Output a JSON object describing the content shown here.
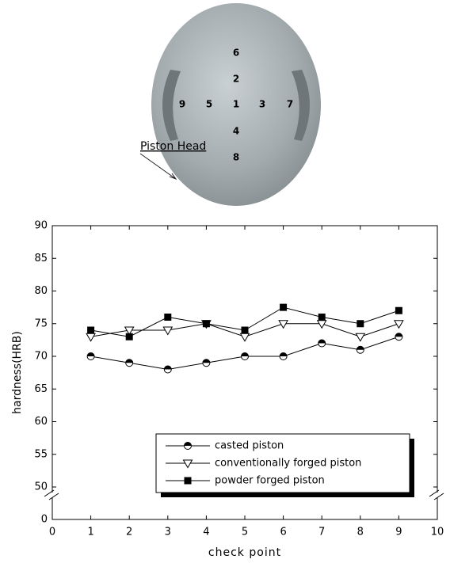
{
  "photo": {
    "label": "Piston Head",
    "points": [
      6,
      2,
      9,
      5,
      1,
      3,
      7,
      4,
      8
    ]
  },
  "chart_data": {
    "type": "line",
    "x": [
      1,
      2,
      3,
      4,
      5,
      6,
      7,
      8,
      9
    ],
    "series": [
      {
        "name": "casted piston",
        "color": "#000000",
        "marker": "half-circle",
        "values": [
          70,
          69,
          68,
          69,
          70,
          70,
          72,
          71,
          73
        ]
      },
      {
        "name": "conventionally forged piston",
        "color": "#000000",
        "marker": "open-triangle-down",
        "values": [
          73,
          74,
          74,
          75,
          73,
          75,
          75,
          73,
          75
        ]
      },
      {
        "name": "powder forged piston",
        "color": "#000000",
        "marker": "filled-square",
        "values": [
          74,
          73,
          76,
          75,
          74,
          77.5,
          76,
          75,
          77
        ]
      }
    ],
    "xlabel": "check point",
    "ylabel": "hardness(HRB)",
    "xlim": [
      0,
      10
    ],
    "xticks": [
      0,
      1,
      2,
      3,
      4,
      5,
      6,
      7,
      8,
      9,
      10
    ],
    "ylim": [
      0,
      90
    ],
    "yticks": [
      0,
      50,
      55,
      60,
      65,
      70,
      75,
      80,
      85,
      90
    ],
    "y_break": [
      0,
      50
    ],
    "legend": "lower center"
  }
}
